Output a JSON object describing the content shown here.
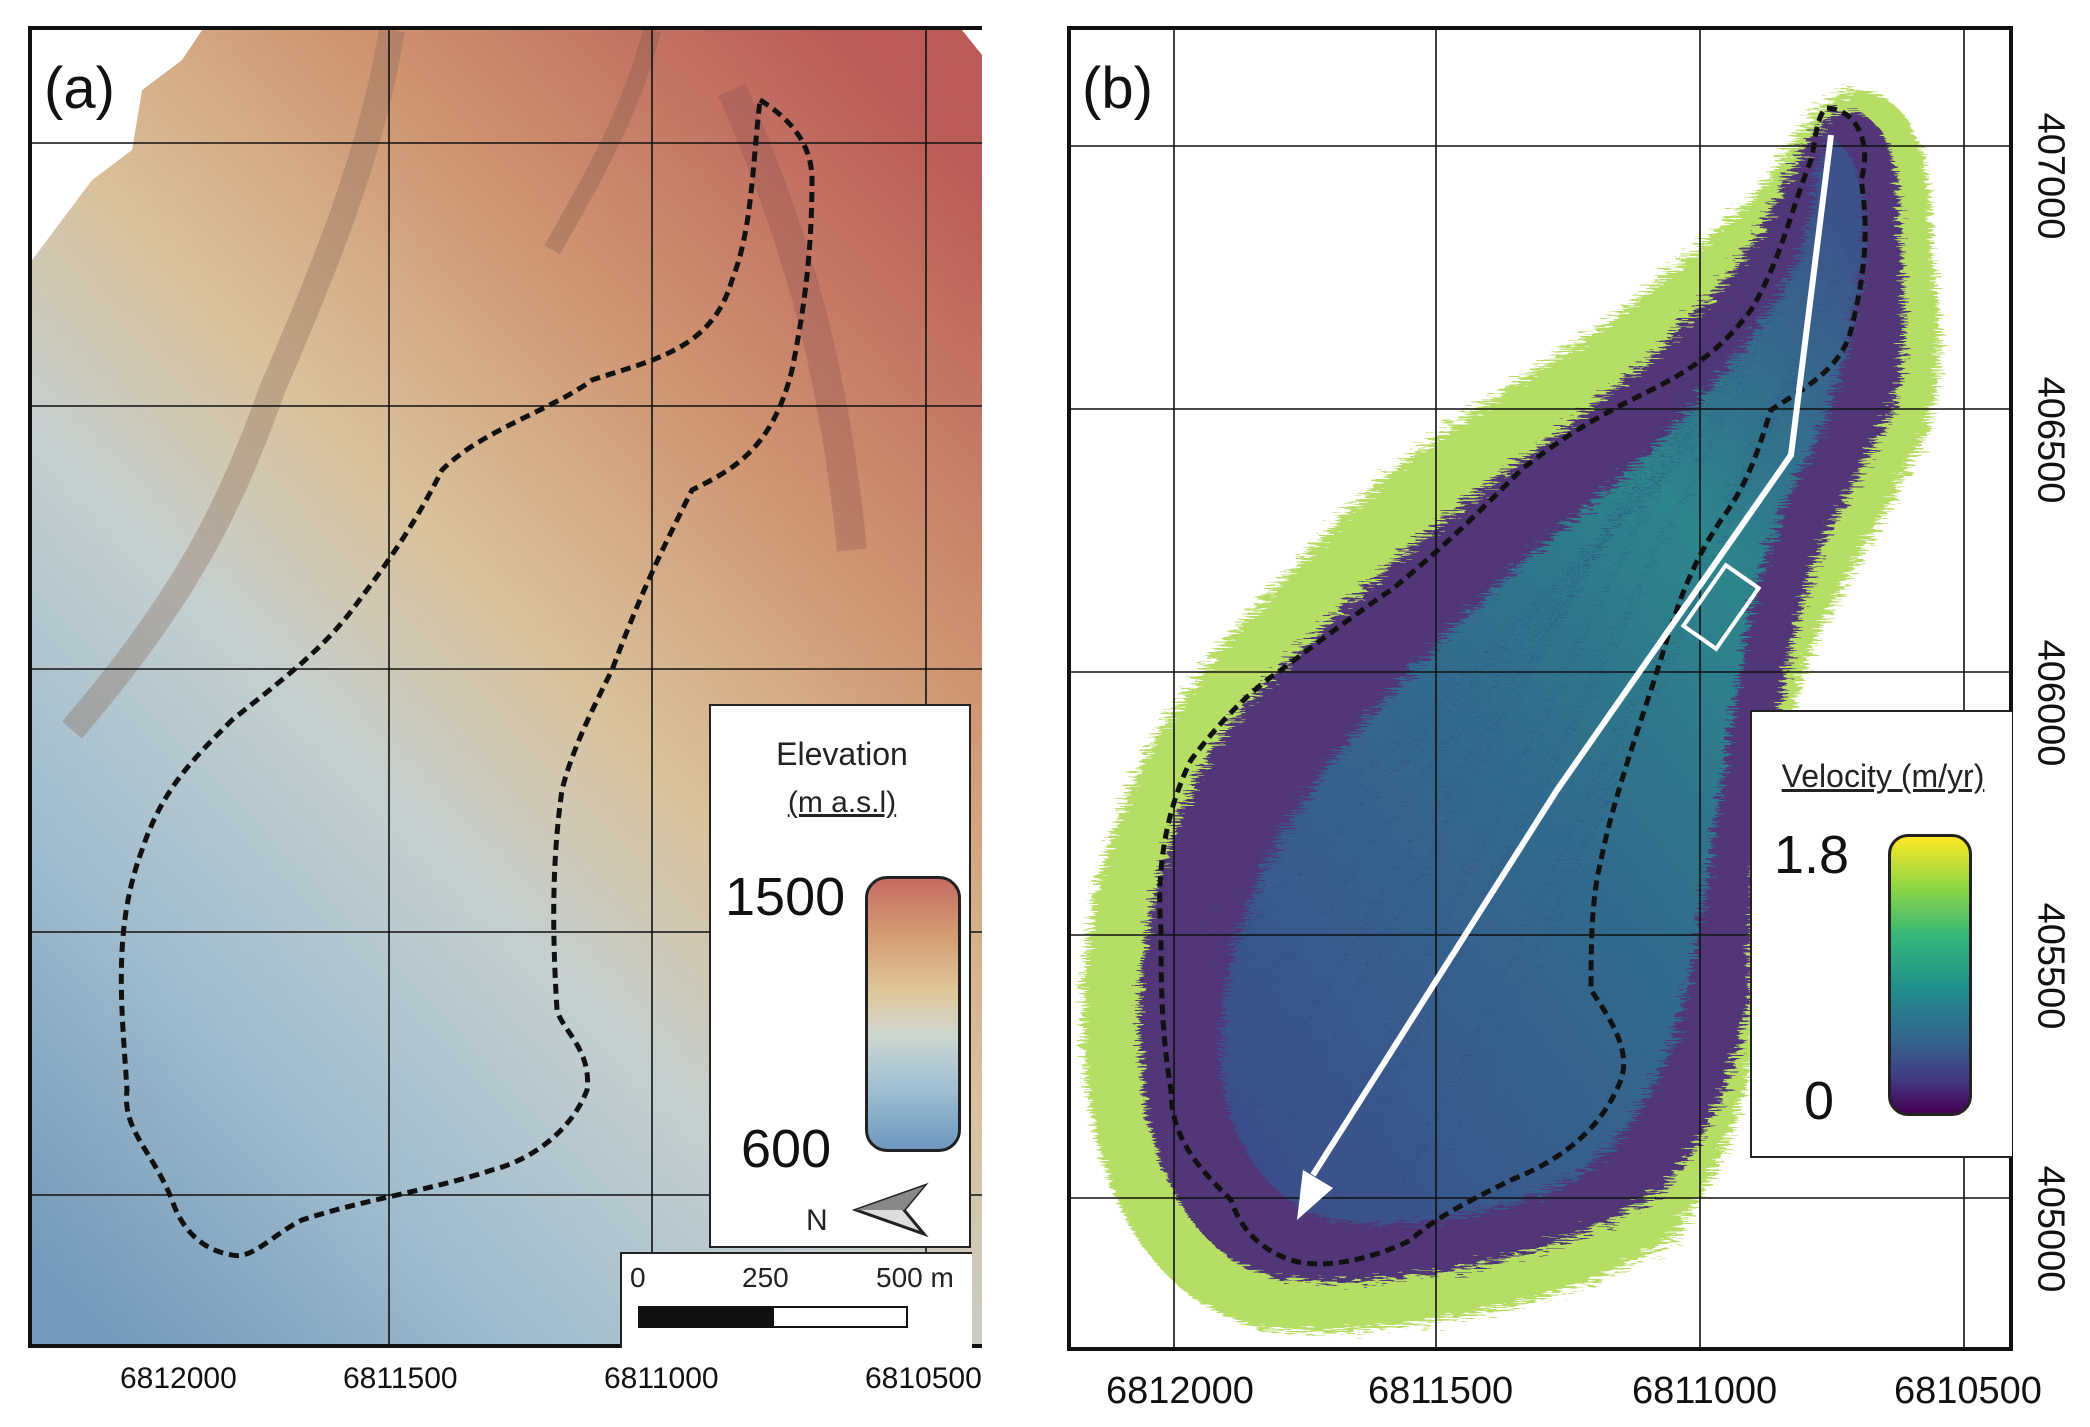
{
  "panel_a": {
    "label": "(a)",
    "legend": {
      "title": "Elevation",
      "unit": "(m a.s.l)",
      "max": "1500",
      "min": "600"
    },
    "north_label": "N",
    "scale_bar": {
      "ticks": [
        "0",
        "250",
        "500 m"
      ]
    },
    "x_ticks": [
      "6812000",
      "6811500",
      "6811000",
      "6810500"
    ]
  },
  "panel_b": {
    "label": "(b)",
    "legend": {
      "title": "Velocity (m/yr)",
      "max": "1.8",
      "min": "0"
    },
    "x_ticks": [
      "6812000",
      "6811500",
      "6811000",
      "6810500"
    ],
    "y_ticks": [
      "407000",
      "406500",
      "406000",
      "405500",
      "405000"
    ]
  },
  "colors": {
    "elevation_high": "#c66b63",
    "elevation_low": "#6d97bd",
    "velocity_high": "#fde725",
    "velocity_low": "#440154",
    "boundary": "#111111",
    "flow_arrow": "#ffffff"
  },
  "icons": [
    "north-arrow-icon",
    "flow-direction-arrow-icon"
  ]
}
